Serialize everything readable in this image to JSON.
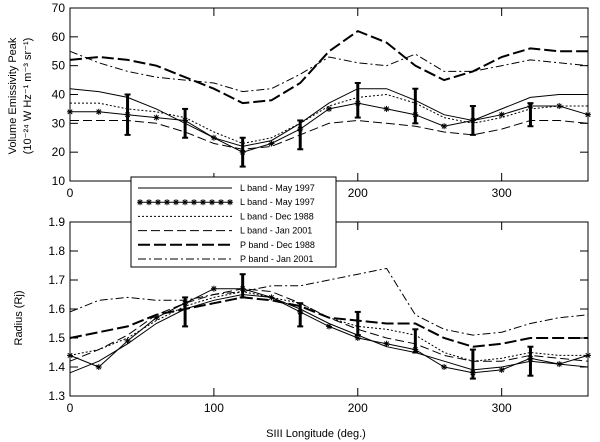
{
  "chart_data": [
    {
      "type": "line",
      "xlabel": "",
      "ylabel": "Volume Emissivity Peak",
      "ylabel_units": "(10⁻²⁴ W Hz⁻¹ m⁻³ sr⁻¹)",
      "xlim": [
        0,
        360
      ],
      "ylim": [
        10,
        70
      ],
      "xticks": [
        "0",
        "100",
        "200",
        "300"
      ],
      "yticks": [
        "10",
        "20",
        "30",
        "40",
        "50",
        "60",
        "70"
      ],
      "series": [
        {
          "name": "L band - May 1997",
          "x": [
            0,
            20,
            40,
            60,
            80,
            100,
            120,
            140,
            160,
            180,
            200,
            220,
            240,
            260,
            280,
            300,
            320,
            340,
            360
          ],
          "y": [
            42,
            41,
            39,
            35,
            30,
            25,
            22,
            24,
            30,
            37,
            42,
            42,
            38,
            33,
            31,
            35,
            39,
            40,
            40
          ]
        },
        {
          "name": "L band - May 1997",
          "x": [
            0,
            20,
            40,
            60,
            80,
            100,
            120,
            140,
            160,
            180,
            200,
            220,
            240,
            260,
            280,
            300,
            320,
            340,
            360
          ],
          "y": [
            34,
            34,
            33,
            32,
            31,
            25,
            20,
            23,
            28,
            35,
            37,
            35,
            33,
            29,
            31,
            33,
            36,
            36,
            33
          ]
        },
        {
          "name": "L band - Dec 1988",
          "x": [
            0,
            20,
            40,
            60,
            80,
            100,
            120,
            140,
            160,
            180,
            200,
            220,
            240,
            260,
            280,
            300,
            320,
            340,
            360
          ],
          "y": [
            37,
            37,
            35,
            34,
            32,
            27,
            23,
            25,
            30,
            36,
            39,
            40,
            37,
            32,
            30,
            32,
            35,
            36,
            36
          ]
        },
        {
          "name": "L band - Jan 2001",
          "x": [
            0,
            20,
            40,
            60,
            80,
            100,
            120,
            140,
            160,
            180,
            200,
            220,
            240,
            260,
            280,
            300,
            320,
            340,
            360
          ],
          "y": [
            31,
            31,
            31,
            30,
            27,
            23,
            21,
            22,
            26,
            30,
            31,
            30,
            29,
            27,
            26,
            28,
            31,
            31,
            30
          ]
        },
        {
          "name": "P band - Dec 1988",
          "x": [
            0,
            20,
            40,
            60,
            80,
            100,
            120,
            140,
            160,
            180,
            200,
            220,
            240,
            260,
            280,
            300,
            320,
            340,
            360
          ],
          "y": [
            52,
            53,
            52,
            50,
            46,
            42,
            37,
            38,
            44,
            55,
            62,
            58,
            50,
            45,
            48,
            53,
            56,
            55,
            55
          ]
        },
        {
          "name": "P band - Jan 2001",
          "x": [
            0,
            20,
            40,
            60,
            80,
            100,
            120,
            140,
            160,
            180,
            200,
            220,
            240,
            260,
            280,
            300,
            320,
            340,
            360
          ],
          "y": [
            55,
            51,
            48,
            46,
            45,
            44,
            41,
            42,
            47,
            53,
            51,
            50,
            54,
            48,
            48,
            50,
            52,
            51,
            50
          ]
        }
      ],
      "error_bars": {
        "x": [
          40,
          80,
          120,
          160,
          200,
          240,
          280,
          320
        ],
        "y": [
          33,
          30,
          20,
          26,
          38,
          36,
          31,
          33
        ],
        "err": [
          7,
          5,
          5,
          5,
          6,
          6,
          5,
          4
        ]
      }
    },
    {
      "type": "line",
      "xlabel": "SIII Longitude (deg.)",
      "ylabel": "Radius (Rj)",
      "xlim": [
        0,
        360
      ],
      "ylim": [
        1.3,
        1.9
      ],
      "xticks": [
        "0",
        "100",
        "200",
        "300"
      ],
      "yticks": [
        "1.3",
        "1.4",
        "1.5",
        "1.6",
        "1.7",
        "1.8",
        "1.9"
      ],
      "series": [
        {
          "name": "L band - May 1997",
          "x": [
            0,
            20,
            40,
            60,
            80,
            100,
            120,
            140,
            160,
            180,
            200,
            220,
            240,
            260,
            280,
            300,
            320,
            340,
            360
          ],
          "y": [
            1.38,
            1.42,
            1.48,
            1.55,
            1.6,
            1.63,
            1.65,
            1.64,
            1.6,
            1.55,
            1.51,
            1.47,
            1.45,
            1.42,
            1.39,
            1.4,
            1.42,
            1.41,
            1.4
          ]
        },
        {
          "name": "L band - May 1997",
          "x": [
            0,
            20,
            40,
            60,
            80,
            100,
            120,
            140,
            160,
            180,
            200,
            220,
            240,
            260,
            280,
            300,
            320,
            340,
            360
          ],
          "y": [
            1.44,
            1.4,
            1.49,
            1.57,
            1.62,
            1.67,
            1.67,
            1.64,
            1.59,
            1.54,
            1.5,
            1.48,
            1.46,
            1.4,
            1.38,
            1.39,
            1.43,
            1.41,
            1.44
          ]
        },
        {
          "name": "L band - Dec 1988",
          "x": [
            0,
            20,
            40,
            60,
            80,
            100,
            120,
            140,
            160,
            180,
            200,
            220,
            240,
            260,
            280,
            300,
            320,
            340,
            360
          ],
          "y": [
            1.44,
            1.46,
            1.5,
            1.56,
            1.61,
            1.64,
            1.66,
            1.64,
            1.62,
            1.57,
            1.54,
            1.53,
            1.51,
            1.45,
            1.42,
            1.43,
            1.45,
            1.44,
            1.44
          ]
        },
        {
          "name": "L band - Jan 2001",
          "x": [
            0,
            20,
            40,
            60,
            80,
            100,
            120,
            140,
            160,
            180,
            200,
            220,
            240,
            260,
            280,
            300,
            320,
            340,
            360
          ],
          "y": [
            1.42,
            1.46,
            1.51,
            1.58,
            1.62,
            1.65,
            1.67,
            1.66,
            1.62,
            1.57,
            1.53,
            1.5,
            1.48,
            1.44,
            1.42,
            1.42,
            1.44,
            1.43,
            1.42
          ]
        },
        {
          "name": "P band - Dec 1988",
          "x": [
            0,
            20,
            40,
            60,
            80,
            100,
            120,
            140,
            160,
            180,
            200,
            220,
            240,
            260,
            280,
            300,
            320,
            340,
            360
          ],
          "y": [
            1.5,
            1.52,
            1.54,
            1.58,
            1.6,
            1.62,
            1.64,
            1.63,
            1.61,
            1.57,
            1.56,
            1.55,
            1.55,
            1.5,
            1.47,
            1.48,
            1.5,
            1.5,
            1.5
          ]
        },
        {
          "name": "P band - Jan 2001",
          "x": [
            0,
            20,
            40,
            60,
            80,
            100,
            120,
            140,
            160,
            180,
            200,
            220,
            240,
            260,
            280,
            300,
            320,
            340,
            360
          ],
          "y": [
            1.59,
            1.63,
            1.64,
            1.63,
            1.63,
            1.65,
            1.66,
            1.68,
            1.68,
            1.7,
            1.72,
            1.74,
            1.58,
            1.53,
            1.51,
            1.52,
            1.55,
            1.57,
            1.58
          ]
        }
      ],
      "error_bars": {
        "x": [
          80,
          120,
          160,
          200,
          240,
          280,
          320
        ],
        "y": [
          1.59,
          1.68,
          1.58,
          1.55,
          1.49,
          1.41,
          1.42
        ],
        "err": [
          0.05,
          0.04,
          0.04,
          0.04,
          0.04,
          0.05,
          0.05
        ]
      }
    }
  ],
  "legend": {
    "placement": "between-panels-left",
    "entries": [
      "L band - May 1997",
      "L band - May 1997",
      "L band - Dec 1988",
      "L band - Jan 2001",
      "P band - Dec 1988",
      "P band - Jan 2001"
    ]
  },
  "colors": {
    "ink": "#000000",
    "background": "#ffffff"
  }
}
